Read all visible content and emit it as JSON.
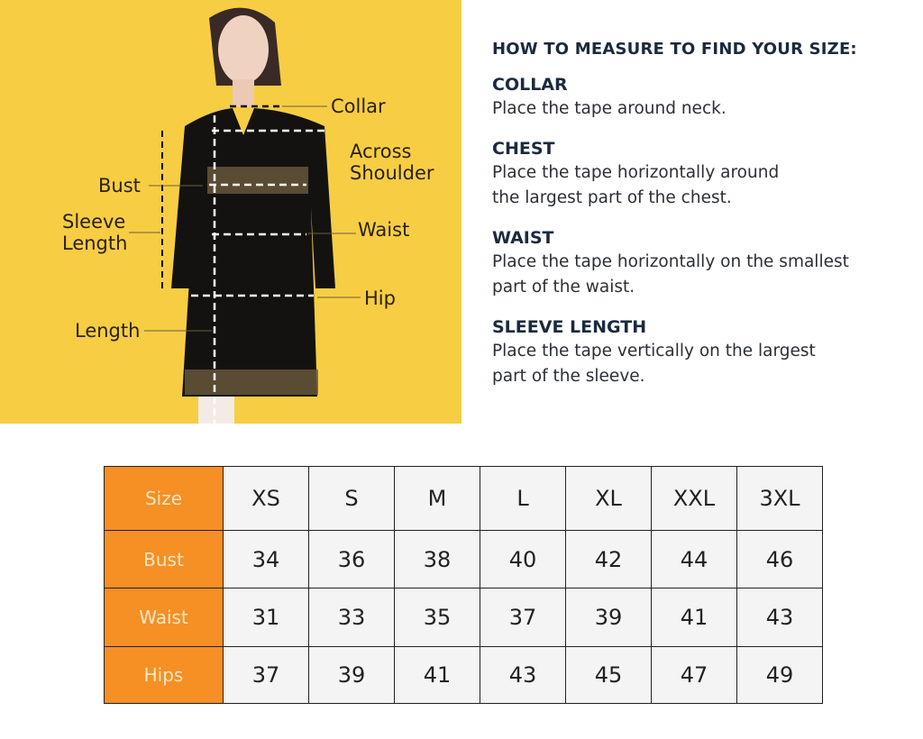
{
  "colors": {
    "background_panel": "#f7cd44",
    "header_cell": "#f68f24",
    "header_text": "#fbe6c4",
    "heading": "#1b2a3e"
  },
  "figure": {
    "labels": {
      "collar": "Collar",
      "across_shoulder": "Across\nShoulder",
      "bust": "Bust",
      "sleeve_length": "Sleeve\nLength",
      "waist": "Waist",
      "hip": "Hip",
      "length": "Length"
    }
  },
  "guide": {
    "title": "HOW TO MEASURE TO FIND YOUR SIZE:",
    "sections": [
      {
        "heading": "COLLAR",
        "text": "Place the tape around neck."
      },
      {
        "heading": "CHEST",
        "text": "Place the tape horizontally around\nthe largest part of the chest."
      },
      {
        "heading": "WAIST",
        "text": "Place the tape horizontally on the smallest\npart of the waist."
      },
      {
        "heading": "SLEEVE LENGTH",
        "text": "Place the tape vertically on the largest\npart of the sleeve."
      }
    ]
  },
  "size_table": {
    "rows": [
      {
        "label": "Size",
        "values": [
          "XS",
          "S",
          "M",
          "L",
          "XL",
          "XXL",
          "3XL"
        ]
      },
      {
        "label": "Bust",
        "values": [
          "34",
          "36",
          "38",
          "40",
          "42",
          "44",
          "46"
        ]
      },
      {
        "label": "Waist",
        "values": [
          "31",
          "33",
          "35",
          "37",
          "39",
          "41",
          "43"
        ]
      },
      {
        "label": "Hips",
        "values": [
          "37",
          "39",
          "41",
          "43",
          "45",
          "47",
          "49"
        ]
      }
    ]
  }
}
